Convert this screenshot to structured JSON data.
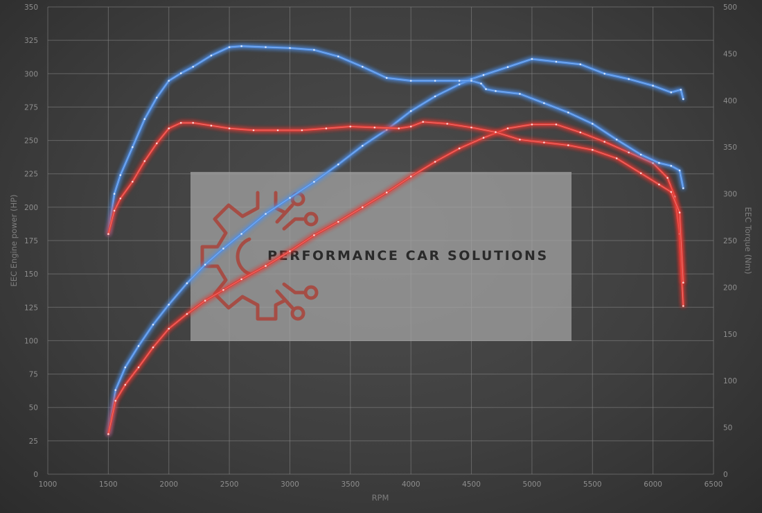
{
  "chart_data": {
    "type": "line",
    "xlabel": "RPM",
    "ylabel_left": "EEC Engine power (HP)",
    "ylabel_right": "EEC Torque (Nm)",
    "xlim": [
      1000,
      6500
    ],
    "x_ticks": [
      1000,
      1500,
      2000,
      2500,
      3000,
      3500,
      4000,
      4500,
      5000,
      5500,
      6000,
      6500
    ],
    "ylim_left": [
      0,
      350
    ],
    "y_left_ticks": [
      0,
      25,
      50,
      75,
      100,
      125,
      150,
      175,
      200,
      225,
      250,
      275,
      300,
      325,
      350
    ],
    "ylim_right": [
      0,
      500
    ],
    "y_right_ticks": [
      0,
      50,
      100,
      150,
      200,
      250,
      300,
      350,
      400,
      450,
      500
    ],
    "grid": true,
    "colors": {
      "blue": "#4f8fe6",
      "red": "#e23a34"
    },
    "series": [
      {
        "axis": "left",
        "color": "blue",
        "x": [
          1500,
          1560,
          1640,
          1750,
          1870,
          2000,
          2150,
          2300,
          2450,
          2600,
          2800,
          3000,
          3200,
          3400,
          3600,
          3800,
          4000,
          4200,
          4400,
          4500,
          4600,
          4800,
          5000,
          5200,
          5400,
          5600,
          5800,
          6000,
          6150,
          6230,
          6250
        ],
        "values": [
          30,
          63,
          80,
          96,
          112,
          127,
          143,
          157,
          169,
          180,
          195,
          207,
          219,
          232,
          246,
          258,
          272,
          283,
          292,
          296,
          299,
          305,
          311,
          309,
          307,
          300,
          296,
          291,
          286,
          288,
          281
        ]
      },
      {
        "axis": "left",
        "color": "red",
        "x": [
          1500,
          1560,
          1640,
          1750,
          1870,
          2000,
          2150,
          2300,
          2450,
          2600,
          2800,
          3000,
          3200,
          3400,
          3600,
          3800,
          4000,
          4200,
          4400,
          4600,
          4800,
          5000,
          5200,
          5400,
          5600,
          5800,
          6000,
          6120,
          6180,
          6220,
          6250
        ],
        "values": [
          30,
          55,
          67,
          80,
          95,
          109,
          120,
          130,
          138,
          146,
          156,
          167,
          179,
          189,
          200,
          211,
          223,
          234,
          244,
          252,
          259,
          262,
          262,
          256,
          249,
          241,
          233,
          222,
          208,
          180,
          126
        ]
      },
      {
        "axis": "right",
        "color": "blue",
        "x": [
          1500,
          1550,
          1600,
          1700,
          1800,
          1900,
          2000,
          2100,
          2200,
          2350,
          2500,
          2600,
          2800,
          3000,
          3200,
          3400,
          3600,
          3800,
          4000,
          4200,
          4400,
          4500,
          4580,
          4620,
          4700,
          4900,
          5100,
          5300,
          5500,
          5700,
          5900,
          6050,
          6150,
          6220,
          6250
        ],
        "values": [
          257,
          300,
          320,
          350,
          380,
          403,
          421,
          429,
          436,
          448,
          457,
          458,
          457,
          456,
          454,
          447,
          436,
          424,
          421,
          421,
          421,
          421,
          418,
          412,
          410,
          407,
          397,
          387,
          375,
          358,
          342,
          333,
          330,
          325,
          306
        ]
      },
      {
        "axis": "right",
        "color": "red",
        "x": [
          1500,
          1550,
          1600,
          1700,
          1800,
          1900,
          2000,
          2100,
          2200,
          2350,
          2500,
          2700,
          2900,
          3100,
          3300,
          3500,
          3700,
          3900,
          4000,
          4100,
          4300,
          4500,
          4700,
          4900,
          5100,
          5300,
          5500,
          5700,
          5900,
          6050,
          6150,
          6220,
          6250
        ],
        "values": [
          257,
          282,
          295,
          313,
          335,
          354,
          370,
          376,
          376,
          373,
          370,
          368,
          368,
          368,
          370,
          372,
          371,
          370,
          372,
          377,
          375,
          371,
          366,
          358,
          355,
          352,
          347,
          338,
          322,
          310,
          302,
          280,
          205
        ]
      }
    ],
    "watermark": {
      "text": "PERFORMANCE CAR SOLUTIONS"
    }
  }
}
